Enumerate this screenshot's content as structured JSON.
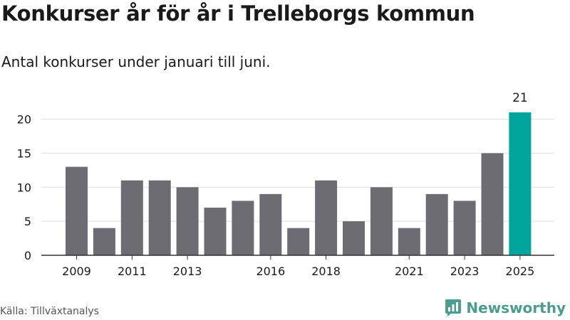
{
  "header": {
    "title": "Konkurser år för år i Trelleborgs kommun",
    "subtitle": "Antal konkurser under januari till juni."
  },
  "footer": {
    "source": "Källa: Tillväxtanalys",
    "brand": "Newsworthy",
    "brand_icon": "newsworthy-logo-icon",
    "brand_color": "#4a9d8f"
  },
  "chart_data": {
    "type": "bar",
    "title": "Konkurser år för år i Trelleborgs kommun",
    "subtitle": "Antal konkurser under januari till juni.",
    "xlabel": "",
    "ylabel": "",
    "categories": [
      "2009",
      "2010",
      "2011",
      "2012",
      "2013",
      "2014",
      "2015",
      "2016",
      "2017",
      "2018",
      "2019",
      "2020",
      "2021",
      "2022",
      "2023",
      "2024",
      "2025"
    ],
    "values": [
      13,
      4,
      11,
      11,
      10,
      7,
      8,
      9,
      4,
      11,
      5,
      10,
      4,
      9,
      8,
      15,
      21
    ],
    "x_tick_labels": [
      "2009",
      "2011",
      "2013",
      "2016",
      "2018",
      "2021",
      "2023",
      "2025"
    ],
    "y_ticks": [
      0,
      5,
      10,
      15,
      20
    ],
    "ylim": [
      0,
      21
    ],
    "grid": true,
    "highlight": {
      "category": "2025",
      "value_label": "21"
    },
    "colors": {
      "bar": "#6d6c72",
      "highlight": "#00a59b",
      "grid": "#dddddd",
      "axis": "#333333"
    }
  }
}
